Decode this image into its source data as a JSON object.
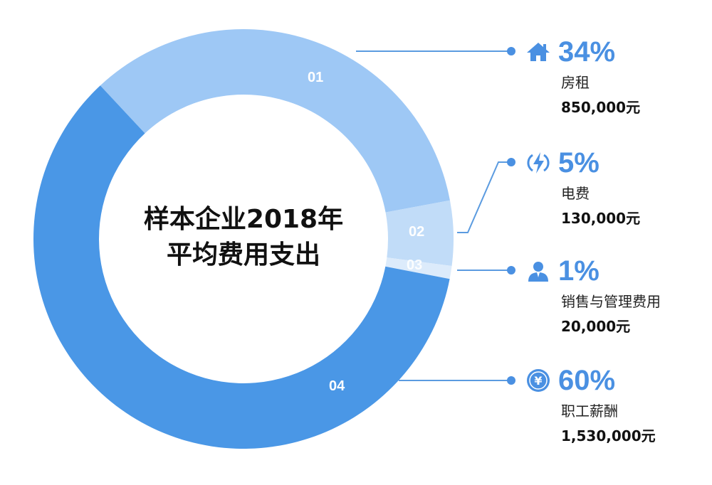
{
  "chart_data": {
    "type": "pie",
    "subtype": "donut",
    "title": "样本企业2018年平均费用支出",
    "categories": [
      "房租",
      "电费",
      "销售与管理费用",
      "职工薪酬"
    ],
    "segment_labels": [
      "01",
      "02",
      "03",
      "04"
    ],
    "values": [
      34,
      5,
      1,
      60
    ],
    "amounts": [
      "850,000元",
      "130,000元",
      "20,000元",
      "1,530,000元"
    ],
    "colors": [
      "#9ec8f5",
      "#c1dcf8",
      "#dcebfb",
      "#4a97e6"
    ],
    "unit": "%"
  },
  "center": {
    "line1": "样本企业2018年",
    "line2": "平均费用支出"
  },
  "legend": [
    {
      "icon": "house-icon",
      "pct": "34%",
      "label": "房租",
      "amount": "850,000元"
    },
    {
      "icon": "lightning-icon",
      "pct": "5%",
      "label": "电费",
      "amount": "130,000元"
    },
    {
      "icon": "person-icon",
      "pct": "1%",
      "label": "销售与管理费用",
      "amount": "20,000元"
    },
    {
      "icon": "yen-coin-icon",
      "pct": "60%",
      "label": "职工薪酬",
      "amount": "1,530,000元"
    }
  ],
  "accent_color": "#4a90e2"
}
